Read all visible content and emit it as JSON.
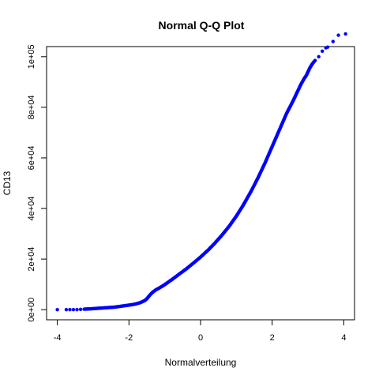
{
  "chart_data": {
    "type": "scatter",
    "title": "Normal Q-Q Plot",
    "xlabel": "Normalverteilung",
    "ylabel": "CD13",
    "xlim": [
      -4.3,
      4.3
    ],
    "ylim": [
      -4000,
      104000
    ],
    "x_ticks": [
      -4,
      -2,
      0,
      2,
      4
    ],
    "x_tick_labels": [
      "-4",
      "-2",
      "0",
      "2",
      "4"
    ],
    "y_ticks": [
      0,
      20000,
      40000,
      60000,
      80000,
      100000
    ],
    "y_tick_labels": [
      "0e+00",
      "2e+04",
      "4e+04",
      "6e+04",
      "8e+04",
      "1e+05"
    ],
    "point_color": "#0000ff",
    "grid": false,
    "series": [
      {
        "x": [
          -4.0,
          -3.75,
          -3.65,
          -3.55,
          -3.45,
          -3.35,
          -3.25,
          -3.1,
          -3.0,
          -2.9,
          -2.8,
          -2.7,
          -2.6,
          -2.5,
          -2.4,
          -2.3,
          -2.2,
          -2.1,
          -2.0,
          -1.9,
          -1.8,
          -1.7,
          -1.65,
          -1.6,
          -1.55,
          -1.5,
          -1.45,
          -1.4,
          -1.35,
          -1.3,
          -1.25,
          -1.2,
          -1.1,
          -1.0,
          -0.9,
          -0.8,
          -0.6,
          -0.4,
          -0.2,
          0.0,
          0.2,
          0.4,
          0.6,
          0.8,
          1.0,
          1.2,
          1.4,
          1.6,
          1.8,
          2.0,
          2.2,
          2.4,
          2.6,
          2.7,
          2.8,
          2.9,
          2.95,
          3.0,
          3.05,
          3.1,
          3.15,
          3.2,
          3.3,
          3.4,
          3.5,
          3.55,
          3.7,
          3.85,
          4.05
        ],
        "y": [
          0,
          0,
          0,
          0,
          0,
          100,
          200,
          300,
          400,
          500,
          600,
          700,
          800,
          900,
          1000,
          1200,
          1400,
          1600,
          1800,
          2000,
          2300,
          2700,
          3000,
          3300,
          3700,
          4300,
          5200,
          6000,
          6700,
          7300,
          7800,
          8200,
          9000,
          9900,
          10900,
          11900,
          14000,
          16100,
          18400,
          20800,
          23400,
          26300,
          29500,
          33000,
          37000,
          41500,
          46500,
          52000,
          58000,
          64500,
          71000,
          77500,
          83000,
          86000,
          89000,
          91500,
          92500,
          94000,
          95500,
          96700,
          97700,
          98500,
          100000,
          102200,
          103500,
          103800,
          106000,
          108500,
          109000
        ]
      }
    ]
  }
}
